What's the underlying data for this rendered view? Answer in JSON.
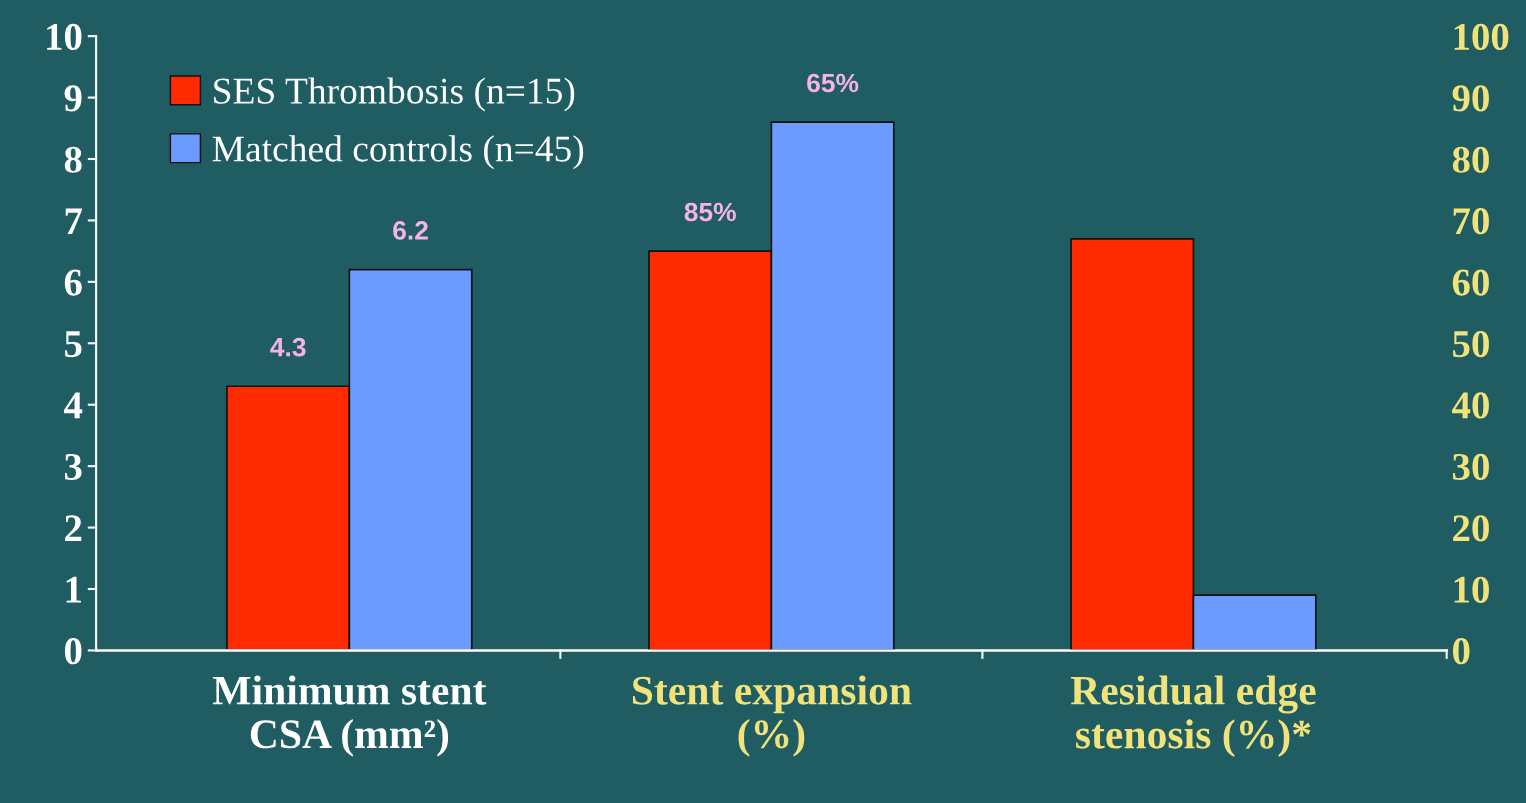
{
  "chart_data": {
    "type": "bar",
    "categories": [
      "Minimum stent\nCSA (mm²)",
      "Stent expansion\n(%)",
      "Residual edge\nstenosis (%)*"
    ],
    "series": [
      {
        "name": "SES Thrombosis (n=15)",
        "color": "#ff2a00",
        "values": [
          4.3,
          null,
          null
        ],
        "value_labels": [
          "4.3",
          null,
          null
        ]
      },
      {
        "name": "Matched controls (n=45)",
        "color": "#6b9bff",
        "values": [
          6.2,
          null,
          null
        ],
        "value_labels": [
          "6.2",
          null,
          null
        ]
      },
      {
        "color": "#ff2a00",
        "axis": "y2",
        "values": [
          null,
          65,
          67
        ]
      },
      {
        "color": "#6b9bff",
        "axis": "y2",
        "values": [
          null,
          86,
          9
        ]
      }
    ],
    "ylim": [
      0,
      10
    ],
    "yticks": [
      0,
      1,
      2,
      3,
      4,
      5,
      6,
      7,
      8,
      9,
      10
    ],
    "y2lim": [
      0,
      100
    ],
    "y2ticks": [
      0,
      10,
      20,
      30,
      40,
      50,
      60,
      70,
      80,
      90,
      100
    ],
    "annotations": [
      "85%",
      "65%"
    ],
    "legend": "top left",
    "grid": false
  }
}
